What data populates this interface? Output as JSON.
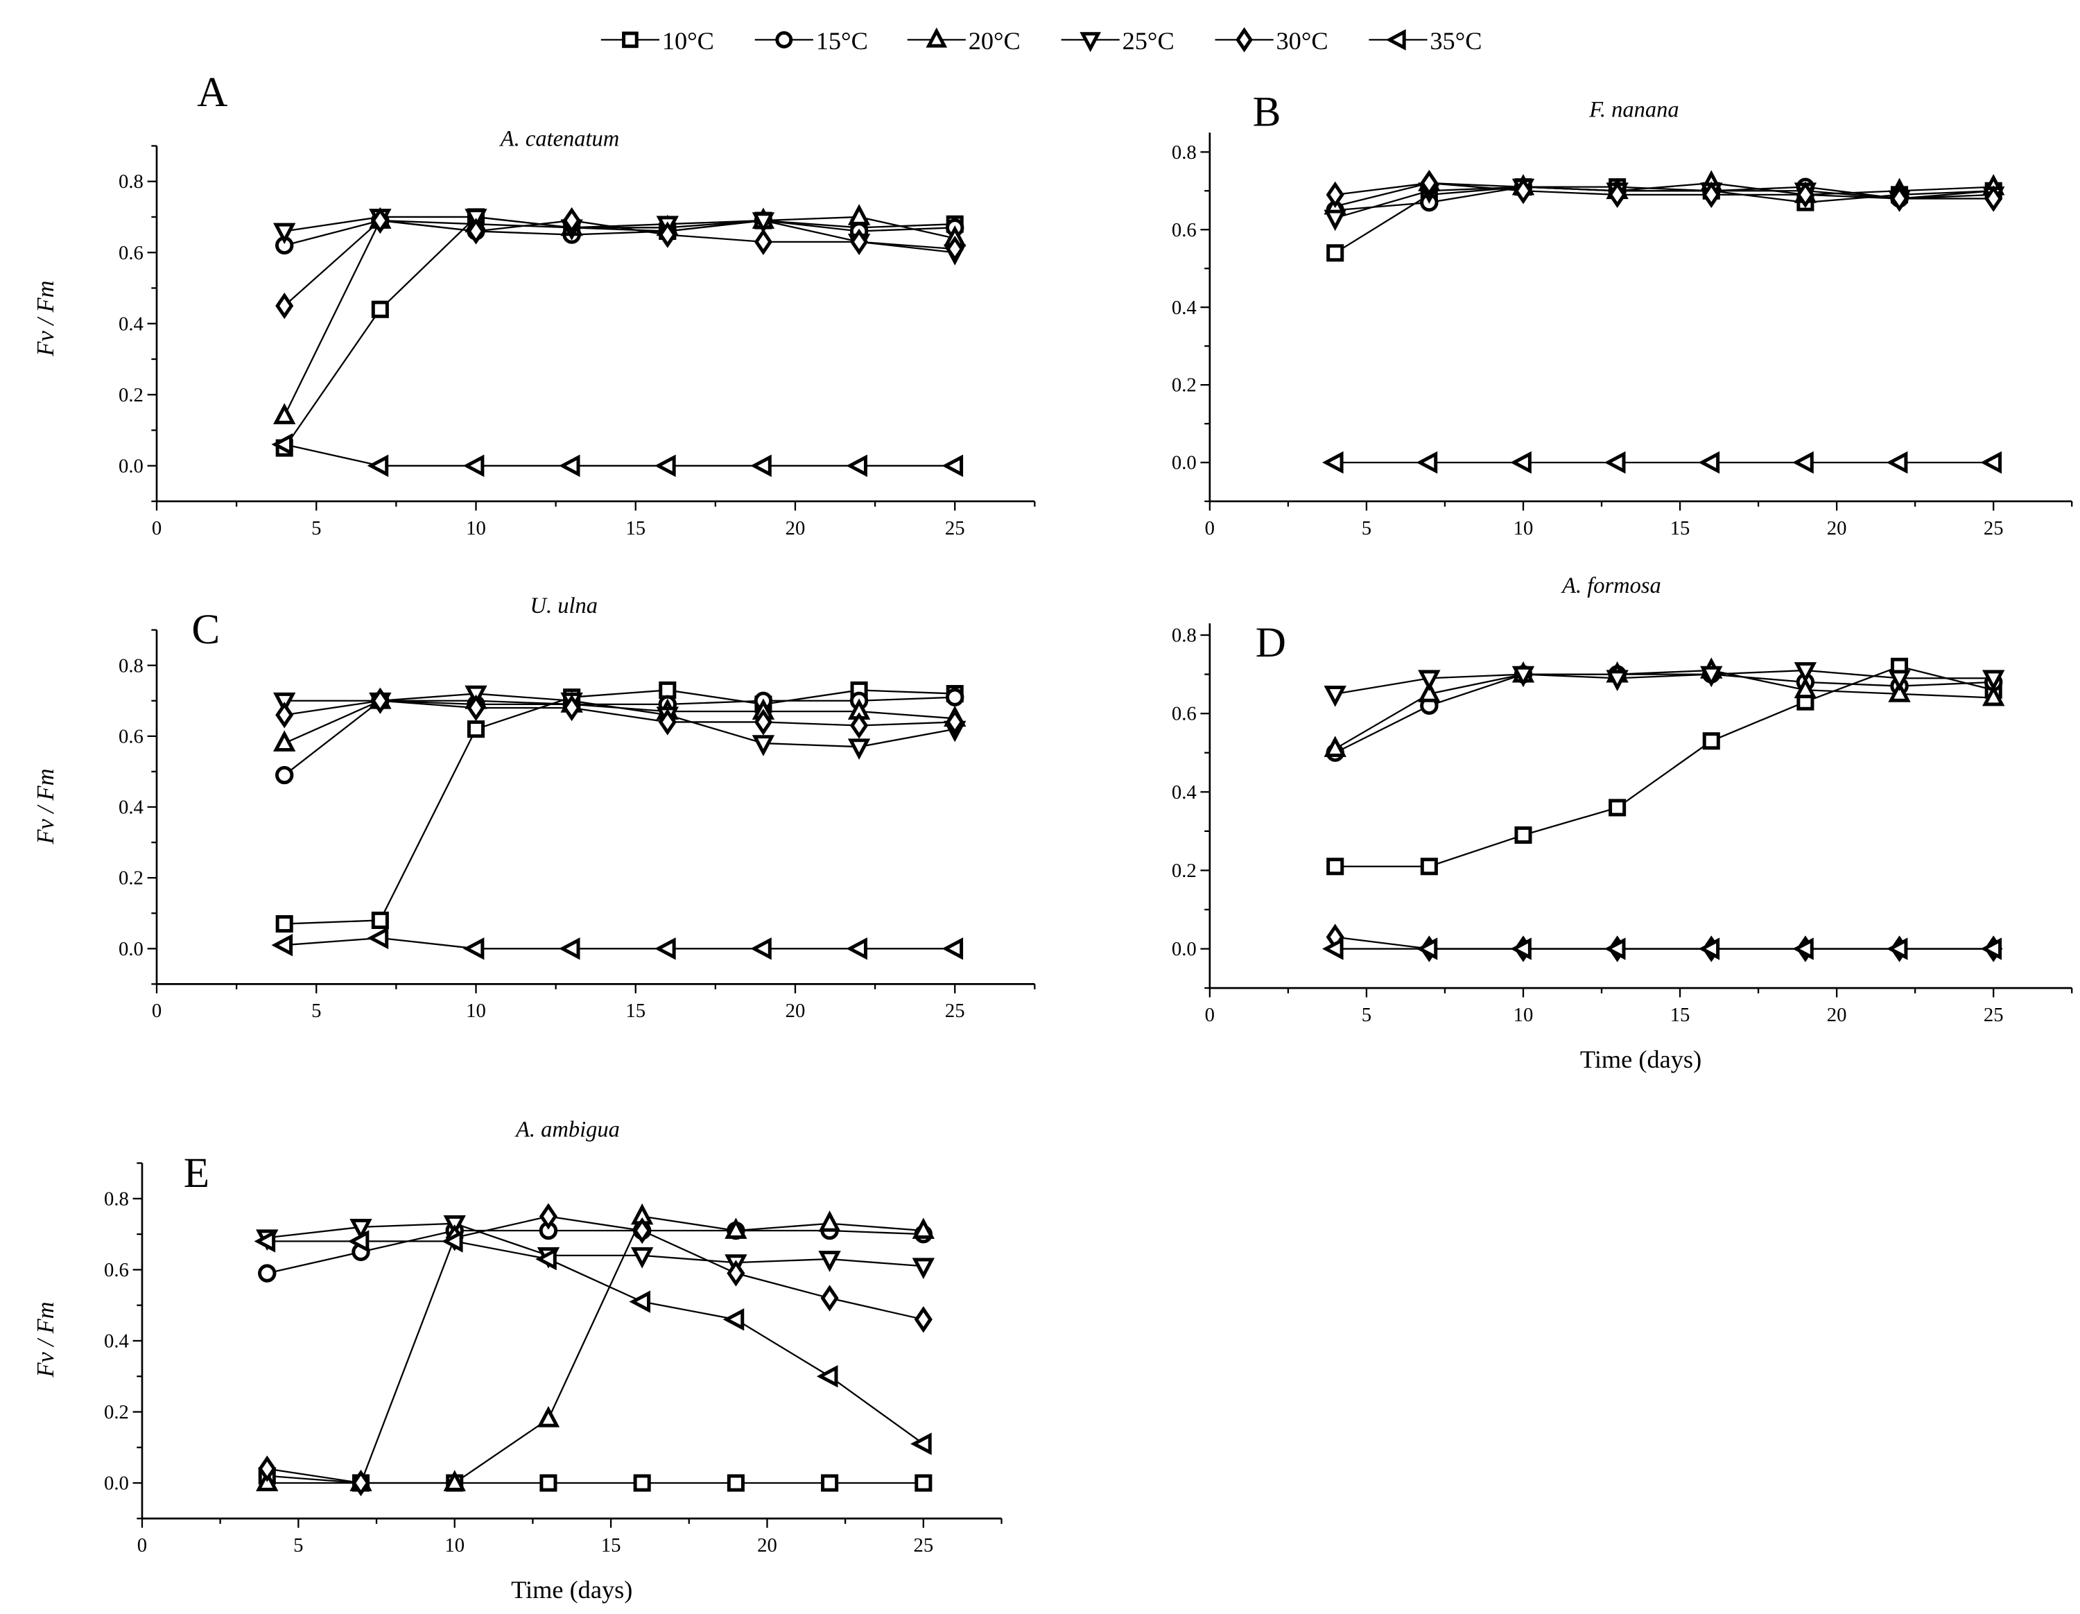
{
  "legend": {
    "position": "top-center",
    "entries": [
      {
        "label": "10°C",
        "marker": "square"
      },
      {
        "label": "15°C",
        "marker": "circle"
      },
      {
        "label": "20°C",
        "marker": "triangle-up"
      },
      {
        "label": "25°C",
        "marker": "triangle-down"
      },
      {
        "label": "30°C",
        "marker": "diamond"
      },
      {
        "label": "35°C",
        "marker": "triangle-left"
      }
    ]
  },
  "chart_data": [
    {
      "type": "line",
      "panel": "A",
      "title": "A. catenatum",
      "xlabel": "",
      "ylabel": "Fv / Fm",
      "xlim": [
        0,
        27.5
      ],
      "ylim": [
        -0.1,
        0.9
      ],
      "xticks": [
        "0",
        "5",
        "10",
        "15",
        "20",
        "25"
      ],
      "yticks": [
        "0.0",
        "0.2",
        "0.4",
        "0.6",
        "0.8"
      ],
      "x": [
        4,
        7,
        10,
        13,
        16,
        19,
        22,
        25
      ],
      "series": [
        {
          "name": "10°C",
          "values": [
            0.05,
            0.44,
            0.7,
            0.67,
            0.66,
            0.69,
            0.67,
            0.68
          ]
        },
        {
          "name": "15°C",
          "values": [
            0.62,
            0.69,
            0.66,
            0.65,
            0.66,
            0.69,
            0.66,
            0.67
          ]
        },
        {
          "name": "20°C",
          "values": [
            0.14,
            0.69,
            0.68,
            0.67,
            0.67,
            0.69,
            0.7,
            0.64
          ]
        },
        {
          "name": "25°C",
          "values": [
            0.66,
            0.7,
            0.7,
            0.67,
            0.68,
            0.69,
            0.63,
            0.6
          ]
        },
        {
          "name": "30°C",
          "values": [
            0.45,
            0.69,
            0.66,
            0.69,
            0.65,
            0.63,
            0.63,
            0.61
          ]
        },
        {
          "name": "35°C",
          "values": [
            0.06,
            0,
            0,
            0,
            0,
            0,
            0,
            0
          ]
        }
      ]
    },
    {
      "type": "line",
      "panel": "B",
      "title": "F. nanana",
      "xlabel": "",
      "ylabel": "",
      "xlim": [
        0,
        27.5
      ],
      "ylim": [
        -0.1,
        0.85
      ],
      "xticks": [
        "0",
        "5",
        "10",
        "15",
        "20",
        "25"
      ],
      "yticks": [
        "0.0",
        "0.2",
        "0.4",
        "0.6",
        "0.8"
      ],
      "x": [
        4,
        7,
        10,
        13,
        16,
        19,
        22,
        25
      ],
      "series": [
        {
          "name": "10°C",
          "values": [
            0.54,
            0.69,
            0.71,
            0.71,
            0.7,
            0.67,
            0.69,
            0.7
          ]
        },
        {
          "name": "15°C",
          "values": [
            0.65,
            0.67,
            0.71,
            0.7,
            0.7,
            0.71,
            0.68,
            0.7
          ]
        },
        {
          "name": "20°C",
          "values": [
            0.66,
            0.72,
            0.71,
            0.7,
            0.72,
            0.69,
            0.7,
            0.71
          ]
        },
        {
          "name": "25°C",
          "values": [
            0.63,
            0.7,
            0.71,
            0.7,
            0.7,
            0.7,
            0.68,
            0.69
          ]
        },
        {
          "name": "30°C",
          "values": [
            0.69,
            0.72,
            0.7,
            0.69,
            0.69,
            0.69,
            0.68,
            0.68
          ]
        },
        {
          "name": "35°C",
          "values": [
            0,
            0,
            0,
            0,
            0,
            0,
            0,
            0
          ]
        }
      ]
    },
    {
      "type": "line",
      "panel": "C",
      "title": "U. ulna",
      "xlabel": "",
      "ylabel": "Fv / Fm",
      "xlim": [
        0,
        27.5
      ],
      "ylim": [
        -0.1,
        0.9
      ],
      "xticks": [
        "0",
        "5",
        "10",
        "15",
        "20",
        "25"
      ],
      "yticks": [
        "0.0",
        "0.2",
        "0.4",
        "0.6",
        "0.8"
      ],
      "x": [
        4,
        7,
        10,
        13,
        16,
        19,
        22,
        25
      ],
      "series": [
        {
          "name": "10°C",
          "values": [
            0.07,
            0.08,
            0.62,
            0.71,
            0.73,
            0.69,
            0.73,
            0.72
          ]
        },
        {
          "name": "15°C",
          "values": [
            0.49,
            0.7,
            0.69,
            0.69,
            0.69,
            0.7,
            0.7,
            0.71
          ]
        },
        {
          "name": "20°C",
          "values": [
            0.58,
            0.7,
            0.7,
            0.69,
            0.67,
            0.67,
            0.67,
            0.65
          ]
        },
        {
          "name": "25°C",
          "values": [
            0.7,
            0.7,
            0.72,
            0.7,
            0.66,
            0.58,
            0.57,
            0.62
          ]
        },
        {
          "name": "30°C",
          "values": [
            0.66,
            0.7,
            0.68,
            0.68,
            0.64,
            0.64,
            0.63,
            0.64
          ]
        },
        {
          "name": "35°C",
          "values": [
            0.01,
            0.03,
            0,
            0,
            0,
            0,
            0,
            0
          ]
        }
      ]
    },
    {
      "type": "line",
      "panel": "D",
      "title": "A. formosa",
      "xlabel": "Time (days)",
      "ylabel": "",
      "xlim": [
        0,
        27.5
      ],
      "ylim": [
        -0.1,
        0.83
      ],
      "xticks": [
        "0",
        "5",
        "10",
        "15",
        "20",
        "25"
      ],
      "yticks": [
        "0.0",
        "0.2",
        "0.4",
        "0.6",
        "0.8"
      ],
      "x": [
        4,
        7,
        10,
        13,
        16,
        19,
        22,
        25
      ],
      "series": [
        {
          "name": "10°C",
          "values": [
            0.21,
            0.21,
            0.29,
            0.36,
            0.53,
            0.63,
            0.72,
            0.66
          ]
        },
        {
          "name": "15°C",
          "values": [
            0.5,
            0.62,
            0.7,
            0.7,
            0.7,
            0.68,
            0.67,
            0.68
          ]
        },
        {
          "name": "20°C",
          "values": [
            0.51,
            0.65,
            0.7,
            0.7,
            0.71,
            0.66,
            0.65,
            0.64
          ]
        },
        {
          "name": "25°C",
          "values": [
            0.65,
            0.69,
            0.7,
            0.69,
            0.7,
            0.71,
            0.69,
            0.69
          ]
        },
        {
          "name": "30°C",
          "values": [
            0.03,
            0,
            0,
            0,
            0,
            0,
            0,
            0
          ]
        },
        {
          "name": "35°C",
          "values": [
            0,
            0,
            0,
            0,
            0,
            0,
            0,
            0
          ]
        }
      ]
    },
    {
      "type": "line",
      "panel": "E",
      "title": "A. ambigua",
      "xlabel": "Time (days)",
      "ylabel": "Fv / Fm",
      "xlim": [
        0,
        27.5
      ],
      "ylim": [
        -0.1,
        0.9
      ],
      "xticks": [
        "0",
        "5",
        "10",
        "15",
        "20",
        "25"
      ],
      "yticks": [
        "0.0",
        "0.2",
        "0.4",
        "0.6",
        "0.8"
      ],
      "x": [
        4,
        7,
        10,
        13,
        16,
        19,
        22,
        25
      ],
      "series": [
        {
          "name": "10°C",
          "values": [
            0.02,
            0,
            0,
            0,
            0,
            0,
            0,
            0
          ]
        },
        {
          "name": "15°C",
          "values": [
            0.59,
            0.65,
            0.71,
            0.71,
            0.71,
            0.71,
            0.71,
            0.7
          ]
        },
        {
          "name": "20°C",
          "values": [
            0,
            0,
            0,
            0.18,
            0.75,
            0.71,
            0.73,
            0.71
          ]
        },
        {
          "name": "25°C",
          "values": [
            0.69,
            0.72,
            0.73,
            0.64,
            0.64,
            0.62,
            0.63,
            0.61
          ]
        },
        {
          "name": "30°C",
          "values": [
            0.04,
            0,
            0.69,
            0.75,
            0.71,
            0.59,
            0.52,
            0.46
          ]
        },
        {
          "name": "35°C",
          "values": [
            0.68,
            0.68,
            0.68,
            0.63,
            0.51,
            0.46,
            0.3,
            0.11
          ]
        }
      ]
    }
  ]
}
